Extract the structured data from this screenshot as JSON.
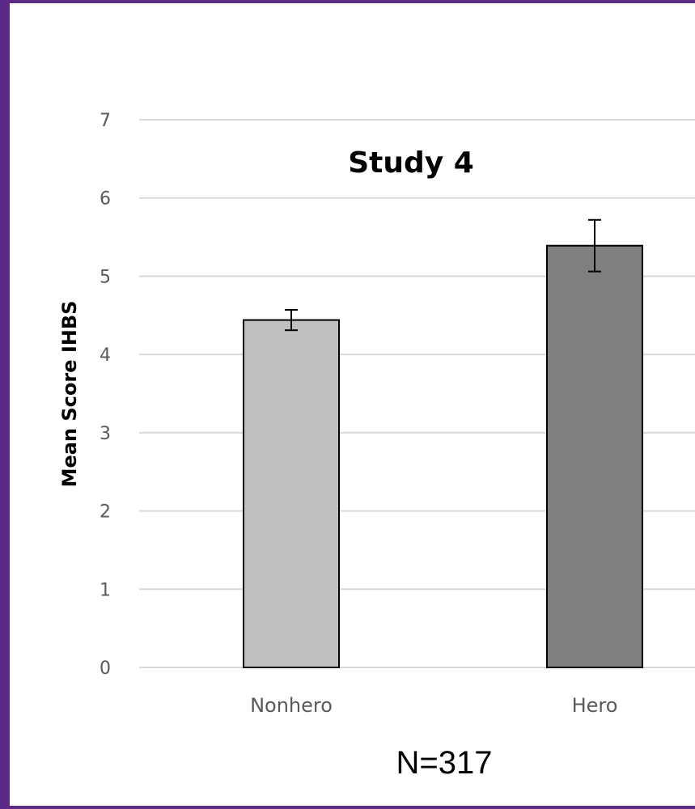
{
  "chart_data": {
    "type": "bar",
    "title": "Study 4",
    "ylabel": "Mean Score IHBS",
    "xlabel": "",
    "categories": [
      "Nonhero",
      "Hero"
    ],
    "values": [
      4.44,
      5.39
    ],
    "error": [
      0.13,
      0.33
    ],
    "colors": [
      "#bfbfbf",
      "#7f7f7f"
    ],
    "ylim": [
      0,
      7
    ],
    "yticks": [
      "0",
      "1",
      "2",
      "3",
      "4",
      "5",
      "6",
      "7"
    ],
    "grid": true,
    "note": "N=317"
  },
  "colors": {
    "background": "#5b2a86",
    "grid": "#d9d9d9"
  }
}
